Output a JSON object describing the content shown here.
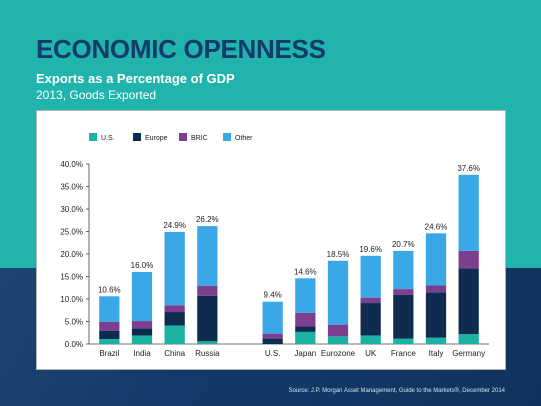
{
  "header": {
    "title": "ECONOMIC OPENNESS",
    "subtitle": "Exports as a Percentage of GDP",
    "subtitle2": "2013, Goods Exported"
  },
  "footer": {
    "source": "Source: J.P. Morgan Asset Management, Guide to the Markets®, December 2014"
  },
  "colors": {
    "us": "#19b2a3",
    "europe": "#0f2b4f",
    "bric": "#7c3f8d",
    "other": "#3aa8e6"
  },
  "chart_data": {
    "type": "bar",
    "stacked": true,
    "title": "",
    "xlabel": "",
    "ylabel": "",
    "ylim": [
      0,
      40
    ],
    "y_ticks": [
      "0.0%",
      "5.0%",
      "10.0%",
      "15.0%",
      "20.0%",
      "25.0%",
      "30.0%",
      "35.0%",
      "40.0%"
    ],
    "grid": false,
    "legend_position": "top-left",
    "categories": [
      "Brazil",
      "India",
      "China",
      "Russia",
      "U.S.",
      "Japan",
      "Eurozone",
      "UK",
      "France",
      "Italy",
      "Germany"
    ],
    "gap_after_index": 3,
    "totals_labels": [
      "10.6%",
      "16.0%",
      "24.9%",
      "26.2%",
      "9.4%",
      "14.6%",
      "18.5%",
      "19.6%",
      "20.7%",
      "24.6%",
      "37.6%"
    ],
    "series": [
      {
        "name": "U.S.",
        "key": "us",
        "values": [
          1.1,
          1.9,
          4.1,
          0.6,
          0.0,
          2.7,
          1.7,
          1.9,
          1.2,
          1.4,
          2.2
        ]
      },
      {
        "name": "Europe",
        "key": "europe",
        "values": [
          1.8,
          1.6,
          3.0,
          10.1,
          1.2,
          1.2,
          0.0,
          7.2,
          9.7,
          10.1,
          14.6
        ]
      },
      {
        "name": "BRIC",
        "key": "bric",
        "values": [
          2.0,
          1.6,
          1.5,
          2.2,
          1.1,
          3.0,
          2.6,
          1.2,
          1.3,
          1.5,
          3.9
        ]
      },
      {
        "name": "Other",
        "key": "other",
        "values": [
          5.7,
          10.9,
          16.3,
          13.3,
          7.1,
          7.7,
          14.2,
          9.3,
          8.5,
          11.6,
          16.9
        ]
      }
    ]
  }
}
